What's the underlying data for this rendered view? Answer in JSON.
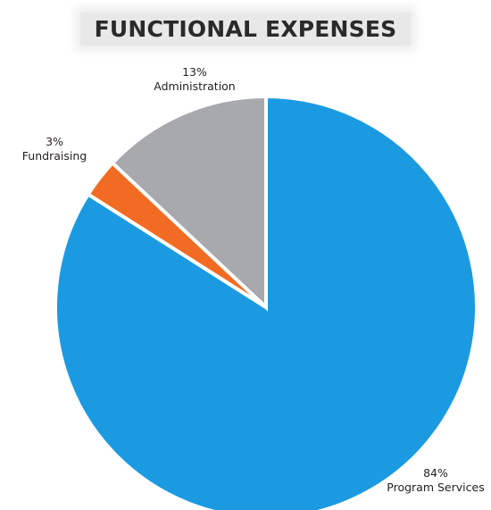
{
  "chart_data": {
    "type": "pie",
    "title": "FUNCTIONAL EXPENSES",
    "slices": [
      {
        "label": "Program Services",
        "value_label": "84%",
        "value": 84,
        "color": "#1b9ae2"
      },
      {
        "label": "Fundraising",
        "value_label": "3%",
        "value": 3,
        "color": "#f26b23"
      },
      {
        "label": "Administration",
        "value_label": "13%",
        "value": 13,
        "color": "#a7a9ac"
      }
    ],
    "start_angle_deg": 0,
    "direction": "clockwise",
    "legend": "none"
  }
}
